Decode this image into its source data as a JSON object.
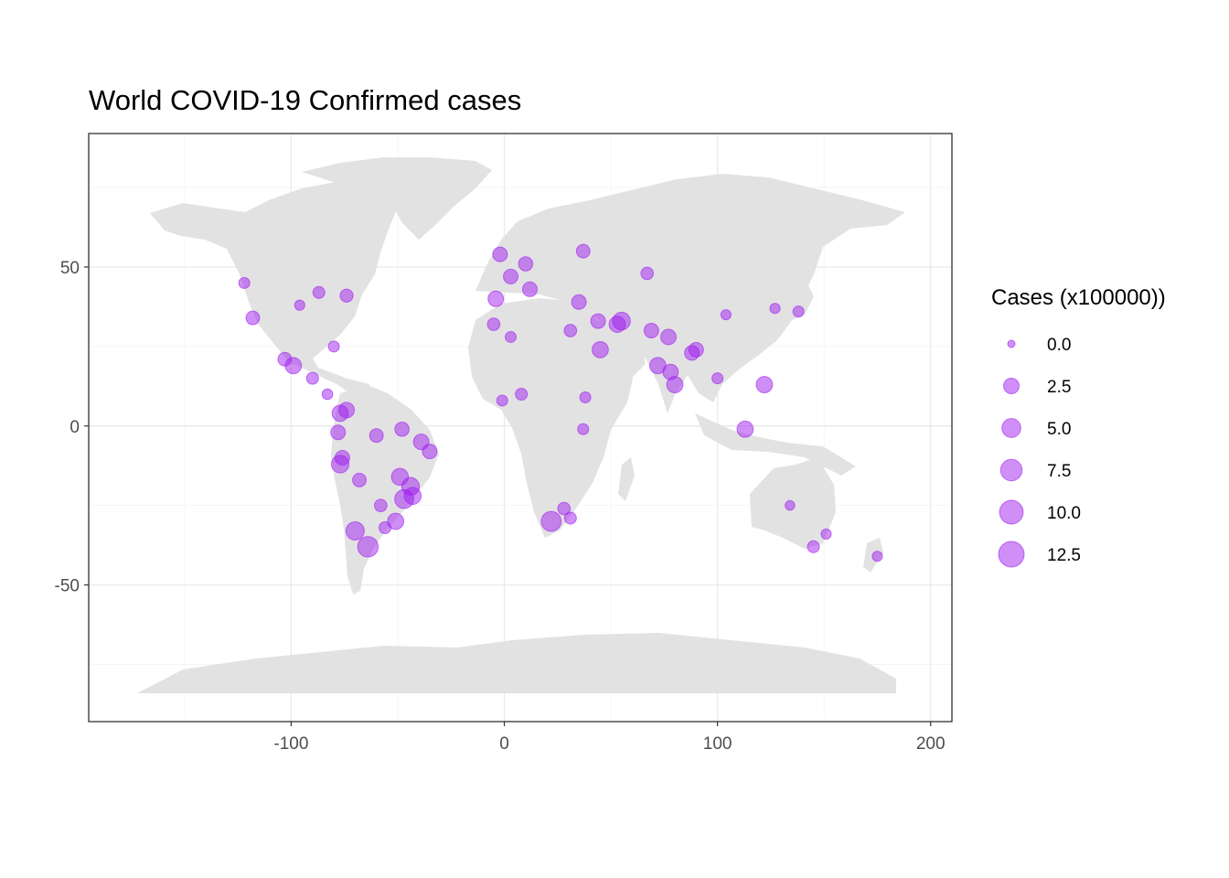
{
  "chart_data": {
    "type": "scatter",
    "title": "World COVID-19 Confirmed cases",
    "xlabel": "",
    "ylabel": "",
    "xlim": [
      -195,
      210
    ],
    "ylim": [
      -93,
      92
    ],
    "x_ticks": [
      -100,
      0,
      100,
      200
    ],
    "x_tick_labels": [
      "-100",
      "0",
      "100",
      "200"
    ],
    "y_ticks": [
      -50,
      0,
      50
    ],
    "y_tick_labels": [
      "-50",
      "0",
      "50"
    ],
    "grid": true,
    "basemap": "world land masses",
    "land_color": "#e2e2e2",
    "point_color": "#a020f0",
    "point_opacity": 0.5,
    "legend": {
      "title": "Cases (x100000))",
      "position": "right",
      "entries": [
        {
          "label": "0.0",
          "value": 0.0
        },
        {
          "label": "2.5",
          "value": 2.5
        },
        {
          "label": "5.0",
          "value": 5.0
        },
        {
          "label": "7.5",
          "value": 7.5
        },
        {
          "label": "10.0",
          "value": 10.0
        },
        {
          "label": "12.5",
          "value": 12.5
        }
      ]
    },
    "points": [
      {
        "lon": -96,
        "lat": 38,
        "cases": 0.3
      },
      {
        "lon": -122,
        "lat": 45,
        "cases": 0.5
      },
      {
        "lon": -118,
        "lat": 34,
        "cases": 1.5
      },
      {
        "lon": -87,
        "lat": 42,
        "cases": 0.8
      },
      {
        "lon": -74,
        "lat": 41,
        "cases": 1.2
      },
      {
        "lon": -99,
        "lat": 19,
        "cases": 3.0
      },
      {
        "lon": -103,
        "lat": 21,
        "cases": 1.5
      },
      {
        "lon": -90,
        "lat": 15,
        "cases": 0.8
      },
      {
        "lon": -80,
        "lat": 25,
        "cases": 0.5
      },
      {
        "lon": -83,
        "lat": 10,
        "cases": 0.4
      },
      {
        "lon": -77,
        "lat": 4,
        "cases": 3.0
      },
      {
        "lon": -74,
        "lat": 5,
        "cases": 2.5
      },
      {
        "lon": -78,
        "lat": -2,
        "cases": 2.0
      },
      {
        "lon": -77,
        "lat": -12,
        "cases": 4.0
      },
      {
        "lon": -76,
        "lat": -10,
        "cases": 2.0
      },
      {
        "lon": -68,
        "lat": -17,
        "cases": 1.5
      },
      {
        "lon": -70,
        "lat": -33,
        "cases": 4.5
      },
      {
        "lon": -64,
        "lat": -38,
        "cases": 6.5
      },
      {
        "lon": -58,
        "lat": -25,
        "cases": 1.0
      },
      {
        "lon": -56,
        "lat": -32,
        "cases": 0.8
      },
      {
        "lon": -47,
        "lat": -23,
        "cases": 5.0
      },
      {
        "lon": -43,
        "lat": -22,
        "cases": 3.5
      },
      {
        "lon": -51,
        "lat": -30,
        "cases": 3.0
      },
      {
        "lon": -39,
        "lat": -5,
        "cases": 2.5
      },
      {
        "lon": -35,
        "lat": -8,
        "cases": 2.0
      },
      {
        "lon": -60,
        "lat": -3,
        "cases": 1.5
      },
      {
        "lon": -48,
        "lat": -1,
        "cases": 1.8
      },
      {
        "lon": -49,
        "lat": -16,
        "cases": 3.5
      },
      {
        "lon": -44,
        "lat": -19,
        "cases": 4.0
      },
      {
        "lon": 22,
        "lat": -30,
        "cases": 6.0
      },
      {
        "lon": 28,
        "lat": -26,
        "cases": 1.0
      },
      {
        "lon": 31,
        "lat": -29,
        "cases": 0.8
      },
      {
        "lon": 3,
        "lat": 47,
        "cases": 2.0
      },
      {
        "lon": -4,
        "lat": 40,
        "cases": 2.5
      },
      {
        "lon": 12,
        "lat": 43,
        "cases": 2.0
      },
      {
        "lon": 10,
        "lat": 51,
        "cases": 1.8
      },
      {
        "lon": -2,
        "lat": 54,
        "cases": 2.0
      },
      {
        "lon": 35,
        "lat": 39,
        "cases": 2.0
      },
      {
        "lon": 37,
        "lat": 55,
        "cases": 1.5
      },
      {
        "lon": 53,
        "lat": 32,
        "cases": 3.0
      },
      {
        "lon": 45,
        "lat": 24,
        "cases": 3.0
      },
      {
        "lon": 44,
        "lat": 33,
        "cases": 2.0
      },
      {
        "lon": 55,
        "lat": 33,
        "cases": 4.0
      },
      {
        "lon": 69,
        "lat": 30,
        "cases": 2.0
      },
      {
        "lon": 72,
        "lat": 19,
        "cases": 3.0
      },
      {
        "lon": 77,
        "lat": 28,
        "cases": 2.5
      },
      {
        "lon": 80,
        "lat": 13,
        "cases": 3.0
      },
      {
        "lon": 78,
        "lat": 17,
        "cases": 2.5
      },
      {
        "lon": 88,
        "lat": 23,
        "cases": 2.0
      },
      {
        "lon": 90,
        "lat": 24,
        "cases": 2.0
      },
      {
        "lon": 67,
        "lat": 48,
        "cases": 1.0
      },
      {
        "lon": 122,
        "lat": 13,
        "cases": 3.0
      },
      {
        "lon": 113,
        "lat": -1,
        "cases": 3.0
      },
      {
        "lon": 100,
        "lat": 15,
        "cases": 0.5
      },
      {
        "lon": 104,
        "lat": 35,
        "cases": 0.3
      },
      {
        "lon": 138,
        "lat": 36,
        "cases": 0.5
      },
      {
        "lon": 127,
        "lat": 37,
        "cases": 0.3
      },
      {
        "lon": 134,
        "lat": -25,
        "cases": 0.2
      },
      {
        "lon": 145,
        "lat": -38,
        "cases": 0.8
      },
      {
        "lon": 151,
        "lat": -34,
        "cases": 0.3
      },
      {
        "lon": 175,
        "lat": -41,
        "cases": 0.3
      },
      {
        "lon": 31,
        "lat": 30,
        "cases": 1.0
      },
      {
        "lon": 3,
        "lat": 28,
        "cases": 0.5
      },
      {
        "lon": 8,
        "lat": 10,
        "cases": 0.8
      },
      {
        "lon": 38,
        "lat": 9,
        "cases": 0.5
      },
      {
        "lon": 37,
        "lat": -1,
        "cases": 0.5
      },
      {
        "lon": -1,
        "lat": 8,
        "cases": 0.5
      },
      {
        "lon": -5,
        "lat": 32,
        "cases": 1.0
      }
    ]
  }
}
